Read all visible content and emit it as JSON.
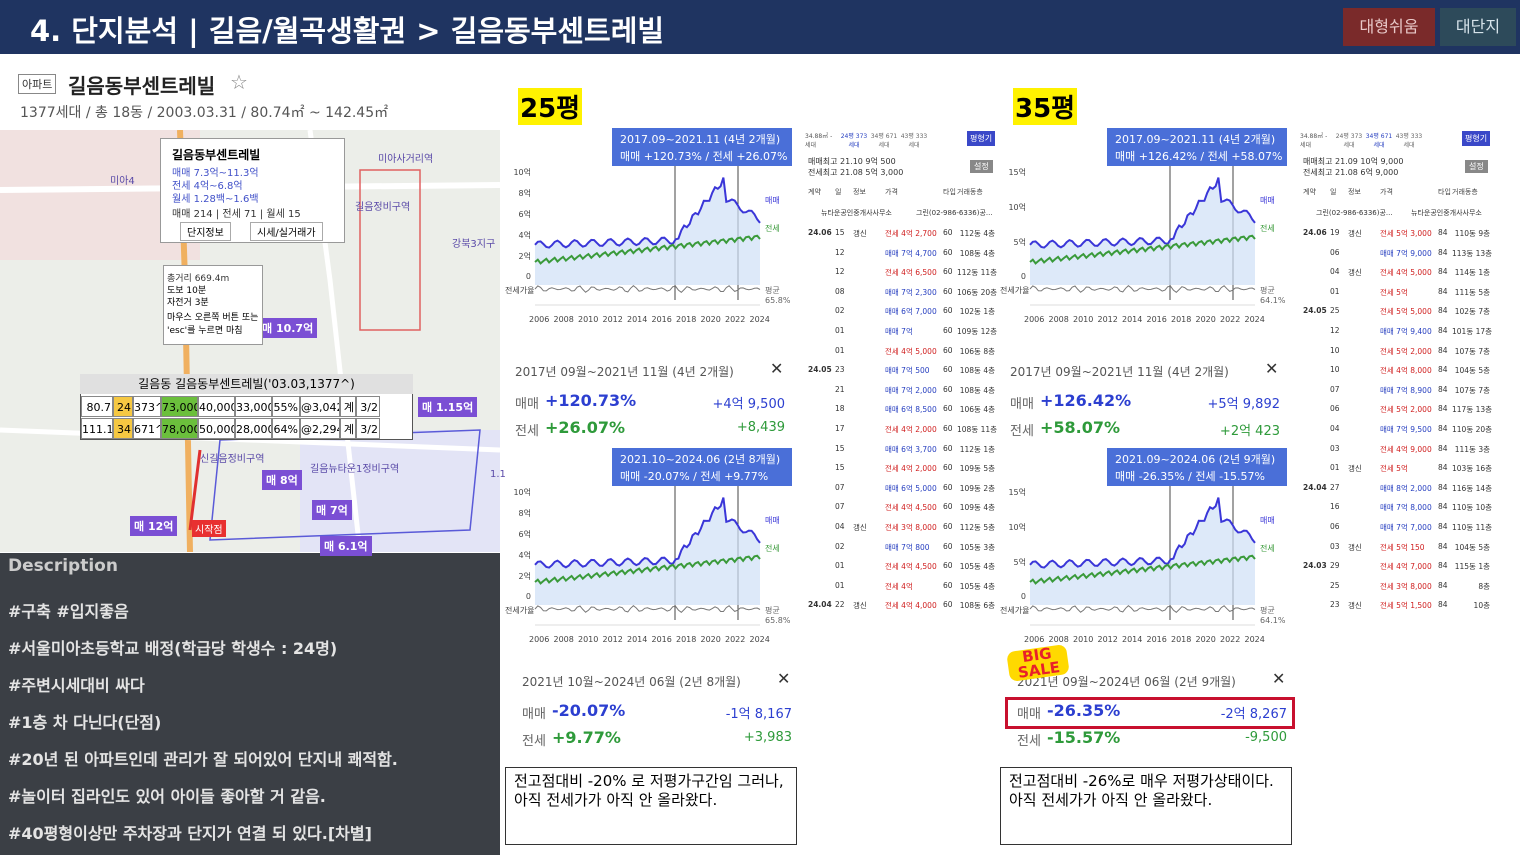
{
  "header": {
    "title": "4. 단지분석 | 길음/월곡생활권 > 길음동부센트레빌",
    "buttons": [
      "대형쉬움",
      "대단지"
    ]
  },
  "apt": {
    "badge": "아파트",
    "name": "길음동부센트레빌",
    "info": "1377세대 / 총 18동 / 2003.03.31 / 80.74㎡ ~ 142.45㎡"
  },
  "map": {
    "labels": [
      "미아4",
      "미아사거리역",
      "길음정비구역",
      "강북3지구",
      "신길음정비구역",
      "길음뉴타운1정비구역",
      "매 10.7억",
      "매 1.15억",
      "매 8억",
      "매 7억",
      "매 12억",
      "매 6.1억",
      "1.15억",
      "시작점"
    ],
    "popup": {
      "name": "길음동부센트레빌",
      "lines": [
        "매매 7.3억~11.3억",
        "전세 4억~6.8억",
        "월세 1.28백~1.6백"
      ],
      "counts": "매매 214 | 전세 71 | 월세 15",
      "buttons": [
        "단지정보",
        "시세/실거래가"
      ]
    },
    "distance": [
      "총거리 669.4m",
      "도보 10분",
      "자전거 3분",
      "마우스 오른쪽 버튼 또는 'esc'를 누르면 마침"
    ],
    "table": {
      "title": "길음동 길음동부센트레빌('03.03,1377^)",
      "rows": [
        [
          "80.7",
          "24",
          "373^",
          "73,000",
          "40,000",
          "33,000",
          "55%",
          "@3,042",
          "계",
          "3/2"
        ],
        [
          "111.1",
          "34",
          "671^",
          "78,000",
          "50,000",
          "28,000",
          "64%",
          "@2,294",
          "계",
          "3/2"
        ]
      ]
    }
  },
  "description": {
    "title": "Description",
    "items": [
      "#구축 #입지좋음",
      "#서울미아초등학교 배정(학급당 학생수 : 24명)",
      "#주변시세대비 싸다",
      "#1층 차 다닌다(단점)",
      "#20년 된 아파트인데 관리가 잘 되어있어 단지내 쾌적함.",
      "#놀이터 집라인도 있어 아이들 좋아할 거 같음.",
      "#40평형이상만 주차장과 단지가 연결 되 있다.[차별]"
    ]
  },
  "sections": [
    {
      "label": "25평",
      "chart1": {
        "title": "2017.09~2021.11 (4년 2개월)",
        "subtitle": "매매 +120.73% / 전세 +26.07%",
        "ylabels": [
          "10억",
          "8억",
          "6억",
          "4억",
          "2억",
          "0"
        ],
        "ratio": "전세가율",
        "right": [
          "매매",
          "전세",
          "평균 65.8%"
        ],
        "xlabels": [
          "2006",
          "2008",
          "2010",
          "2012",
          "2014",
          "2016",
          "2018",
          "2020",
          "2022",
          "2024"
        ]
      },
      "stat1": {
        "period": "2017년 09월~2021년 11월 (4년 2개월)",
        "rows": [
          [
            "매매",
            "+120.73%",
            "+4억 9,500"
          ],
          [
            "전세",
            "+26.07%",
            "+8,439"
          ]
        ]
      },
      "chart2": {
        "title": "2021.10~2024.06 (2년 8개월)",
        "subtitle": "매매 -20.07% / 전세 +9.77%",
        "ylabels": [
          "10억",
          "8억",
          "6억",
          "4억",
          "2억",
          "0"
        ],
        "ratio": "전세가율",
        "right": [
          "매매",
          "전세",
          "평균 65.8%"
        ],
        "xlabels": [
          "2006",
          "2008",
          "2010",
          "2012",
          "2014",
          "2016",
          "2018",
          "2020",
          "2022",
          "2024"
        ]
      },
      "stat2": {
        "period": "2021년 10월~2024년 06월 (2년 8개월)",
        "rows": [
          [
            "매매",
            "-20.07%",
            "-1억 8,167"
          ],
          [
            "전세",
            "+9.77%",
            "+3,983"
          ]
        ]
      },
      "comment": "전고점대비 -20% 로 저평가구간임 그러나, 아직 전세가가 아직 안 올라왔다.",
      "list": {
        "tabs": [
          "24평 373세대",
          "34평 671세대",
          "43평 333세대"
        ],
        "size": "34.88㎡ -세대",
        "button": "평형기",
        "high": [
          "매매최고 21.10 9억 500",
          "전세최고 21.08 5억 3,000"
        ],
        "setting": "설정",
        "columns": [
          "계약",
          "일",
          "정보",
          "가격",
          "타입",
          "거래동층"
        ],
        "agents": [
          "뉴타운공인중개사사무소",
          "그린(02-986-6336)공..."
        ],
        "rows": [
          [
            "24.06",
            "15",
            "갱신",
            "전세 4억 2,700",
            "60",
            "112동 4층"
          ],
          [
            "",
            "12",
            "",
            "매매 7억 4,700",
            "60",
            "108동 4층"
          ],
          [
            "",
            "12",
            "",
            "전세 4억 6,500",
            "60",
            "112동 11층"
          ],
          [
            "",
            "08",
            "",
            "매매 7억 2,300",
            "60",
            "106동 20층"
          ],
          [
            "",
            "02",
            "",
            "매매 6억 7,000",
            "60",
            "102동 1층"
          ],
          [
            "",
            "01",
            "",
            "매매 7억",
            "60",
            "109동 12층"
          ],
          [
            "",
            "01",
            "",
            "전세 4억 5,000",
            "60",
            "106동 8층"
          ],
          [
            "24.05",
            "23",
            "",
            "매매 7억 500",
            "60",
            "108동 4층"
          ],
          [
            "",
            "21",
            "",
            "매매 7억 2,000",
            "60",
            "108동 4층"
          ],
          [
            "",
            "18",
            "",
            "매매 6억 8,500",
            "60",
            "106동 4층"
          ],
          [
            "",
            "17",
            "",
            "전세 4억 2,000",
            "60",
            "108동 11층"
          ],
          [
            "",
            "15",
            "",
            "매매 6억 3,700",
            "60",
            "112동 1층"
          ],
          [
            "",
            "15",
            "",
            "전세 4억 2,000",
            "60",
            "109동 5층"
          ],
          [
            "",
            "07",
            "",
            "매매 6억 5,000",
            "60",
            "109동 2층"
          ],
          [
            "",
            "07",
            "",
            "전세 4억 4,500",
            "60",
            "109동 4층"
          ],
          [
            "",
            "04",
            "갱신",
            "전세 3억 8,000",
            "60",
            "112동 5층"
          ],
          [
            "",
            "02",
            "",
            "매매 7억 800",
            "60",
            "105동 3층"
          ],
          [
            "",
            "01",
            "",
            "전세 4억 4,500",
            "60",
            "105동 4층"
          ],
          [
            "",
            "01",
            "",
            "전세 4억",
            "60",
            "105동 4층"
          ],
          [
            "24.04",
            "22",
            "갱신",
            "전세 4억 4,000",
            "60",
            "108동 6층"
          ]
        ]
      }
    },
    {
      "label": "35평",
      "chart1": {
        "title": "2017.09~2021.11 (4년 2개월)",
        "subtitle": "매매 +126.42% / 전세 +58.07%",
        "ylabels": [
          "15억",
          "10억",
          "5억",
          "0"
        ],
        "ratio": "전세가율",
        "right": [
          "매매",
          "전세",
          "평균 64.1%"
        ],
        "xlabels": [
          "2006",
          "2008",
          "2010",
          "2012",
          "2014",
          "2016",
          "2018",
          "2020",
          "2022",
          "2024"
        ]
      },
      "stat1": {
        "period": "2017년 09월~2021년 11월 (4년 2개월)",
        "rows": [
          [
            "매매",
            "+126.42%",
            "+5억 9,892"
          ],
          [
            "전세",
            "+58.07%",
            "+2억 423"
          ]
        ]
      },
      "chart2": {
        "title": "2021.09~2024.06 (2년 9개월)",
        "subtitle": "매매 -26.35% / 전세 -15.57%",
        "ylabels": [
          "15억",
          "10억",
          "5억",
          "0"
        ],
        "ratio": "전세가율",
        "right": [
          "매매",
          "전세",
          "평균 64.1%"
        ],
        "xlabels": [
          "2006",
          "2008",
          "2010",
          "2012",
          "2014",
          "2016",
          "2018",
          "2020",
          "2022",
          "2024"
        ]
      },
      "stat2": {
        "period": "2021년 09월~2024년 06월 (2년 9개월)",
        "rows": [
          [
            "매매",
            "-26.35%",
            "-2억 8,267"
          ],
          [
            "전세",
            "-15.57%",
            "-9,500"
          ]
        ]
      },
      "comment": "전고점대비 -26%로 매우 저평가상태이다. 아직 전세가가 아직 안 올라왔다.",
      "badge": "BIG SALE",
      "list": {
        "tabs": [
          "24평 373세대",
          "34평 671세대",
          "43평 333세대"
        ],
        "size": "34.88㎡ -세대",
        "button": "평형기",
        "high": [
          "매매최고 21.09 10억 9,000",
          "전세최고 21.08 6억 9,000"
        ],
        "setting": "설정",
        "columns": [
          "계약",
          "일",
          "정보",
          "가격",
          "타입",
          "거래동층"
        ],
        "agents": [
          "그린(02-986-6336)공...",
          "뉴타운공인중개사사무소"
        ],
        "rows": [
          [
            "24.06",
            "19",
            "갱신",
            "전세 5억 3,000",
            "84",
            "110동 9층"
          ],
          [
            "",
            "06",
            "",
            "매매 7억 9,000",
            "84",
            "113동 13층"
          ],
          [
            "",
            "04",
            "갱신",
            "전세 4억 5,000",
            "84",
            "114동 1층"
          ],
          [
            "",
            "01",
            "",
            "전세 5억",
            "84",
            "111동 5층"
          ],
          [
            "24.05",
            "25",
            "",
            "전세 5억 5,000",
            "84",
            "102동 7층"
          ],
          [
            "",
            "12",
            "",
            "매매 7억 9,400",
            "84",
            "101동 17층"
          ],
          [
            "",
            "10",
            "",
            "전세 5억 2,000",
            "84",
            "107동 7층"
          ],
          [
            "",
            "10",
            "",
            "전세 4억 8,000",
            "84",
            "104동 5층"
          ],
          [
            "",
            "07",
            "",
            "매매 7억 8,900",
            "84",
            "107동 7층"
          ],
          [
            "",
            "06",
            "",
            "전세 5억 2,000",
            "84",
            "117동 13층"
          ],
          [
            "",
            "04",
            "",
            "매매 7억 9,500",
            "84",
            "110동 20층"
          ],
          [
            "",
            "03",
            "",
            "전세 4억 9,000",
            "84",
            "111동 3층"
          ],
          [
            "",
            "01",
            "갱신",
            "전세 5억",
            "84",
            "103동 16층"
          ],
          [
            "24.04",
            "27",
            "",
            "매매 8억 2,000",
            "84",
            "116동 14층"
          ],
          [
            "",
            "16",
            "",
            "매매 7억 8,000",
            "84",
            "110동 10층"
          ],
          [
            "",
            "06",
            "",
            "매매 7억 7,000",
            "84",
            "110동 11층"
          ],
          [
            "",
            "03",
            "갱신",
            "전세 5억 150",
            "84",
            "104동 5층"
          ],
          [
            "24.03",
            "29",
            "",
            "전세 4억 7,000",
            "84",
            "115동 1층"
          ],
          [
            "",
            "25",
            "",
            "전세 3억 8,000",
            "84",
            "8층"
          ],
          [
            "",
            "23",
            "갱신",
            "전세 5억 1,500",
            "84",
            "10층"
          ]
        ]
      }
    }
  ]
}
